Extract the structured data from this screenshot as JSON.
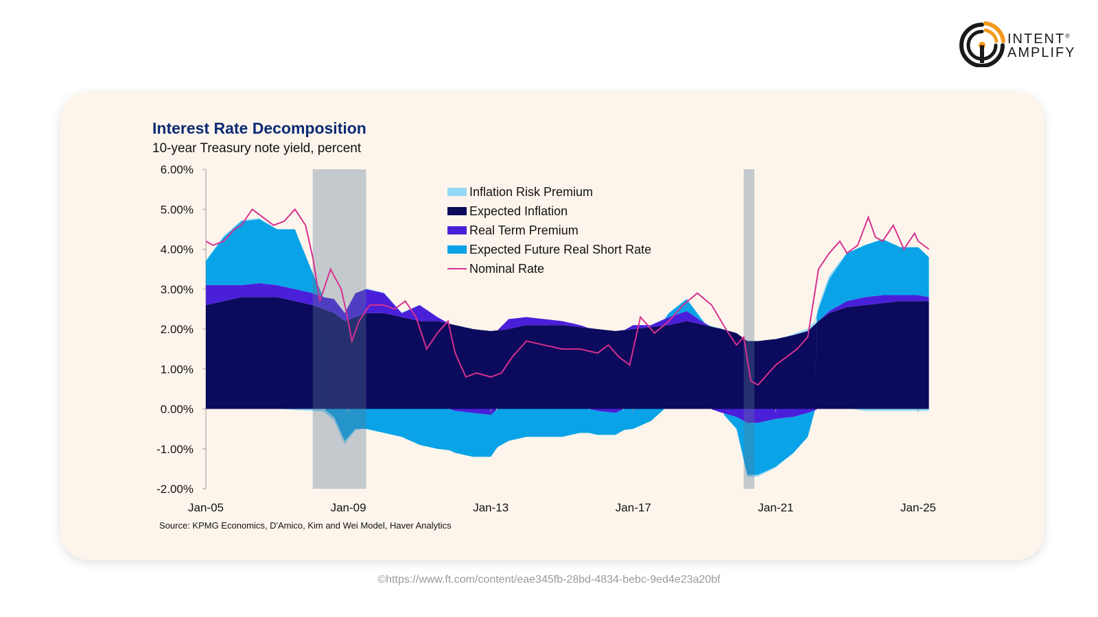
{
  "brand": {
    "line1": "INTENT",
    "line2": "AMPLIFY",
    "reg": "®"
  },
  "credit": "©https://www.ft.com/content/eae345fb-28bd-4834-bebc-9ed4e23a20bf",
  "colors": {
    "card_bg": "#fdf5ec",
    "inflation_risk_premium": "#93d9f5",
    "expected_inflation": "#0c0a5c",
    "real_term_premium": "#4a1fd9",
    "expected_future_real_short_rate": "#0aa3e8",
    "nominal_rate": "#d6308f",
    "title": "#0b2a73",
    "brand_orange": "#f39a1e"
  },
  "chart_data": {
    "type": "area",
    "title": "Interest Rate Decomposition",
    "subtitle": "10-year Treasury note yield, percent",
    "source": "Source: KPMG Economics, D'Amico, Kim and Wei Model, Haver Analytics",
    "xlabel": "",
    "ylabel": "",
    "ylim": [
      -2,
      6
    ],
    "xlim": [
      2005,
      2025.3
    ],
    "x_ticks": [
      {
        "x": 2005,
        "label": "Jan-05"
      },
      {
        "x": 2009,
        "label": "Jan-09"
      },
      {
        "x": 2013,
        "label": "Jan-13"
      },
      {
        "x": 2017,
        "label": "Jan-17"
      },
      {
        "x": 2021,
        "label": "Jan-21"
      },
      {
        "x": 2025,
        "label": "Jan-25"
      }
    ],
    "y_ticks": [
      {
        "y": 6,
        "label": "6.00%"
      },
      {
        "y": 5,
        "label": "5.00%"
      },
      {
        "y": 4,
        "label": "4.00%"
      },
      {
        "y": 3,
        "label": "3.00%"
      },
      {
        "y": 2,
        "label": "2.00%"
      },
      {
        "y": 1,
        "label": "1.00%"
      },
      {
        "y": 0,
        "label": "0.00%"
      },
      {
        "y": -1,
        "label": "-1.00%"
      },
      {
        "y": -2,
        "label": "-2.00%"
      }
    ],
    "recessions": [
      [
        2008.0,
        2009.5
      ],
      [
        2020.1,
        2020.4
      ]
    ],
    "legend_position": "top-center",
    "legend": [
      {
        "key": "inflation_risk_premium",
        "label": "Inflation Risk Premium"
      },
      {
        "key": "expected_inflation",
        "label": "Expected Inflation"
      },
      {
        "key": "real_term_premium",
        "label": "Real Term Premium"
      },
      {
        "key": "expected_future_real_short_rate",
        "label": "Expected Future Real Short Rate"
      },
      {
        "key": "nominal_rate",
        "label": "Nominal Rate",
        "kind": "line"
      }
    ],
    "series": [
      {
        "name": "Inflation Risk Premium",
        "key": "inflation_risk_premium",
        "kind": "area",
        "x": [
          2005.0,
          2006.5,
          2008.0,
          2008.8,
          2009.5,
          2011.0,
          2013.0,
          2015.0,
          2017.0,
          2019.0,
          2019.8,
          2020.3,
          2021.0,
          2021.8,
          2022.4,
          2022.8,
          2023.5,
          2024.5,
          2025.3
        ],
        "values": [
          0.03,
          0.03,
          -0.05,
          -0.1,
          0.02,
          0.01,
          0.0,
          0.0,
          0.0,
          0.02,
          0.0,
          -0.05,
          -0.02,
          0.05,
          0.1,
          0.05,
          -0.05,
          -0.05,
          -0.05
        ]
      },
      {
        "name": "Expected Inflation",
        "key": "expected_inflation",
        "kind": "area",
        "x": [
          2005.0,
          2005.5,
          2006.0,
          2006.5,
          2007.0,
          2007.5,
          2008.0,
          2008.3,
          2008.6,
          2008.9,
          2009.2,
          2009.5,
          2010.0,
          2010.5,
          2011.0,
          2011.5,
          2012.0,
          2012.5,
          2013.0,
          2013.5,
          2014.0,
          2014.5,
          2015.0,
          2015.5,
          2016.0,
          2016.5,
          2017.0,
          2017.5,
          2018.0,
          2018.5,
          2019.0,
          2019.5,
          2019.9,
          2020.2,
          2020.5,
          2021.0,
          2021.5,
          2021.9,
          2022.2,
          2022.5,
          2023.0,
          2023.5,
          2024.0,
          2024.5,
          2025.0,
          2025.3
        ],
        "values": [
          2.6,
          2.7,
          2.8,
          2.8,
          2.8,
          2.7,
          2.6,
          2.5,
          2.4,
          2.2,
          2.3,
          2.4,
          2.4,
          2.3,
          2.2,
          2.2,
          2.1,
          2.0,
          1.95,
          2.0,
          2.1,
          2.1,
          2.1,
          2.05,
          2.0,
          1.95,
          2.0,
          2.05,
          2.1,
          2.2,
          2.1,
          2.0,
          1.9,
          1.7,
          1.7,
          1.75,
          1.85,
          1.95,
          2.2,
          2.4,
          2.55,
          2.6,
          2.65,
          2.7,
          2.7,
          2.7
        ]
      },
      {
        "name": "Real Term Premium",
        "key": "real_term_premium",
        "kind": "area",
        "x": [
          2005.0,
          2005.5,
          2006.0,
          2006.5,
          2007.0,
          2007.5,
          2008.0,
          2008.3,
          2008.6,
          2008.9,
          2009.2,
          2009.5,
          2010.0,
          2010.5,
          2011.0,
          2011.5,
          2012.0,
          2012.5,
          2013.0,
          2013.5,
          2014.0,
          2014.5,
          2015.0,
          2015.5,
          2016.0,
          2016.5,
          2017.0,
          2017.5,
          2018.0,
          2018.5,
          2019.0,
          2019.5,
          2019.9,
          2020.2,
          2020.5,
          2021.0,
          2021.5,
          2021.9,
          2022.2,
          2022.5,
          2023.0,
          2023.5,
          2024.0,
          2024.5,
          2025.0,
          2025.3
        ],
        "values": [
          0.5,
          0.4,
          0.3,
          0.35,
          0.3,
          0.3,
          0.3,
          0.3,
          0.35,
          0.2,
          0.6,
          0.6,
          0.5,
          0.1,
          0.4,
          0.1,
          -0.05,
          -0.1,
          -0.15,
          0.25,
          0.2,
          0.15,
          0.1,
          0.05,
          -0.05,
          -0.1,
          0.1,
          0.05,
          0.2,
          0.25,
          0.05,
          -0.1,
          -0.2,
          -0.35,
          -0.35,
          -0.25,
          -0.2,
          -0.1,
          0.0,
          0.05,
          0.15,
          0.2,
          0.2,
          0.15,
          0.15,
          0.1
        ]
      },
      {
        "name": "Expected Future Real Short Rate",
        "key": "expected_future_real_short_rate",
        "kind": "area",
        "x": [
          2005.0,
          2005.5,
          2006.0,
          2006.5,
          2007.0,
          2007.5,
          2008.0,
          2008.3,
          2008.6,
          2008.9,
          2009.2,
          2009.5,
          2010.0,
          2010.5,
          2011.0,
          2011.5,
          2012.0,
          2012.5,
          2013.0,
          2013.5,
          2014.0,
          2014.5,
          2015.0,
          2015.5,
          2016.0,
          2016.5,
          2017.0,
          2017.5,
          2018.0,
          2018.5,
          2019.0,
          2019.5,
          2019.9,
          2020.2,
          2020.5,
          2021.0,
          2021.5,
          2021.9,
          2022.2,
          2022.5,
          2023.0,
          2023.5,
          2024.0,
          2024.5,
          2025.0,
          2025.3
        ],
        "values": [
          0.6,
          1.2,
          1.6,
          1.6,
          1.4,
          1.5,
          0.5,
          0.0,
          -0.2,
          -0.8,
          -0.5,
          -0.5,
          -0.6,
          -0.7,
          -0.9,
          -1.0,
          -1.05,
          -1.1,
          -1.05,
          -0.8,
          -0.7,
          -0.7,
          -0.7,
          -0.6,
          -0.6,
          -0.55,
          -0.5,
          -0.3,
          0.1,
          0.3,
          0.0,
          0.0,
          -0.3,
          -1.3,
          -1.3,
          -1.2,
          -0.9,
          -0.6,
          0.3,
          0.8,
          1.2,
          1.3,
          1.4,
          1.2,
          1.2,
          1.0
        ]
      },
      {
        "name": "Nominal Rate",
        "key": "nominal_rate",
        "kind": "line",
        "x": [
          2005.0,
          2005.2,
          2005.5,
          2005.8,
          2006.0,
          2006.3,
          2006.6,
          2006.9,
          2007.2,
          2007.5,
          2007.8,
          2008.0,
          2008.2,
          2008.5,
          2008.8,
          2008.95,
          2009.1,
          2009.3,
          2009.6,
          2010.0,
          2010.3,
          2010.6,
          2010.9,
          2011.2,
          2011.5,
          2011.8,
          2012.0,
          2012.3,
          2012.6,
          2013.0,
          2013.3,
          2013.6,
          2014.0,
          2014.5,
          2015.0,
          2015.5,
          2016.0,
          2016.3,
          2016.6,
          2016.9,
          2017.2,
          2017.6,
          2018.0,
          2018.4,
          2018.8,
          2019.2,
          2019.6,
          2019.9,
          2020.1,
          2020.3,
          2020.5,
          2020.8,
          2021.0,
          2021.3,
          2021.6,
          2021.9,
          2022.2,
          2022.5,
          2022.8,
          2023.0,
          2023.3,
          2023.6,
          2023.8,
          2024.0,
          2024.3,
          2024.6,
          2024.9,
          2025.0,
          2025.3
        ],
        "values": [
          4.2,
          4.1,
          4.2,
          4.5,
          4.6,
          5.0,
          4.8,
          4.6,
          4.7,
          5.0,
          4.6,
          3.8,
          2.7,
          3.5,
          3.0,
          2.4,
          1.7,
          2.2,
          2.6,
          2.6,
          2.5,
          2.7,
          2.3,
          1.5,
          1.9,
          2.2,
          1.4,
          0.8,
          0.9,
          0.8,
          0.9,
          1.3,
          1.7,
          1.6,
          1.5,
          1.5,
          1.4,
          1.6,
          1.3,
          1.1,
          2.3,
          1.9,
          2.2,
          2.6,
          2.9,
          2.6,
          2.0,
          1.6,
          1.8,
          0.7,
          0.6,
          0.9,
          1.1,
          1.3,
          1.5,
          1.8,
          3.5,
          3.9,
          4.2,
          3.9,
          4.1,
          4.8,
          4.3,
          4.2,
          4.6,
          4.0,
          4.4,
          4.2,
          4.0
        ]
      }
    ]
  }
}
